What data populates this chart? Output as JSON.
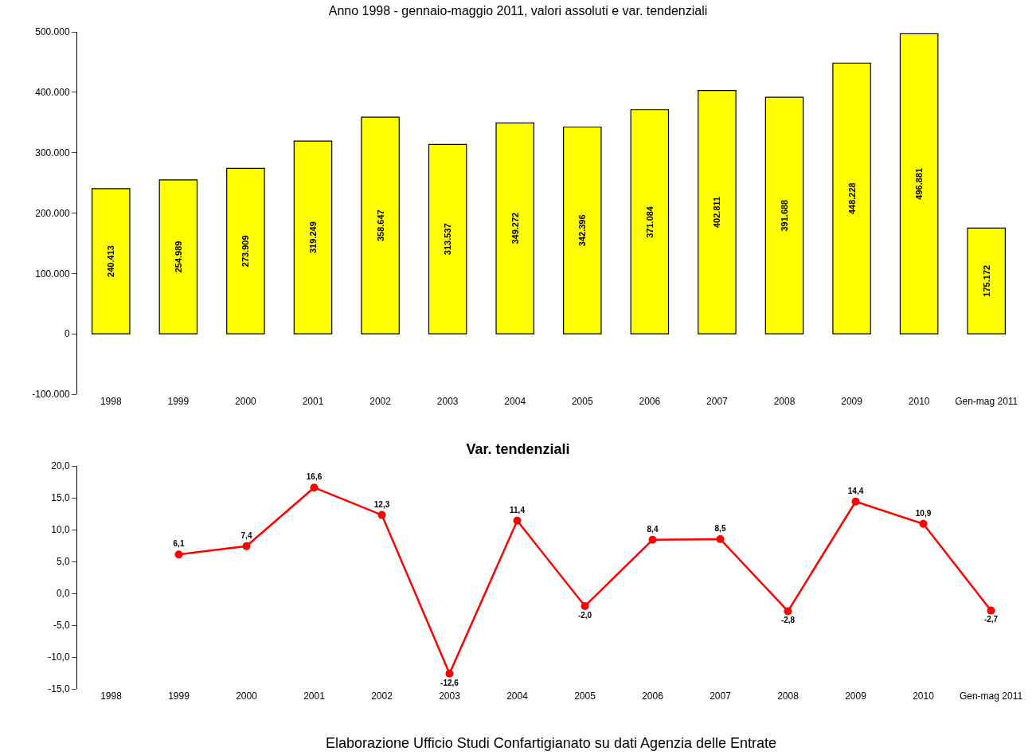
{
  "chart_data": [
    {
      "type": "bar",
      "title": "Anno 1998 - gennaio-maggio 2011, valori assoluti e var. tendenziali",
      "categories": [
        "1998",
        "1999",
        "2000",
        "2001",
        "2002",
        "2003",
        "2004",
        "2005",
        "2006",
        "2007",
        "2008",
        "2009",
        "2010",
        "Gen-mag 2011"
      ],
      "series": [
        {
          "color": "#ffff00",
          "values": [
            240413,
            254989,
            273909,
            319249,
            358647,
            313537,
            349272,
            342396,
            371084,
            402811,
            391688,
            448228,
            496881,
            175172
          ],
          "value_labels": [
            "240.413",
            "254.989",
            "273.909",
            "319.249",
            "358.647",
            "313.537",
            "349.272",
            "342.396",
            "371.084",
            "402.811",
            "391.688",
            "448.228",
            "496.881",
            "175.172"
          ]
        }
      ],
      "ylim": [
        -100000,
        500000
      ],
      "yticks": [
        {
          "value": -100000,
          "label": "-100.000"
        },
        {
          "value": 0,
          "label": "0"
        },
        {
          "value": 100000,
          "label": "100.000"
        },
        {
          "value": 200000,
          "label": "200.000"
        },
        {
          "value": 300000,
          "label": "300.000"
        },
        {
          "value": 400000,
          "label": "400.000"
        },
        {
          "value": 500000,
          "label": "500.000"
        }
      ],
      "grid": false,
      "legend": false
    },
    {
      "type": "line",
      "title": "Var. tendenziali",
      "categories": [
        "1998",
        "1999",
        "2000",
        "2001",
        "2002",
        "2003",
        "2004",
        "2005",
        "2006",
        "2007",
        "2008",
        "2009",
        "2010",
        "Gen-mag 2011"
      ],
      "series": [
        {
          "color": "#ff0000",
          "values": [
            null,
            6.1,
            7.4,
            16.6,
            12.3,
            -12.6,
            11.4,
            -2.0,
            8.4,
            8.5,
            -2.8,
            14.4,
            10.9,
            -2.7
          ],
          "value_labels": [
            null,
            "6,1",
            "7,4",
            "16,6",
            "12,3",
            "-12,6",
            "11,4",
            "-2,0",
            "8,4",
            "8,5",
            "-2,8",
            "14,4",
            "10,9",
            "-2,7"
          ]
        }
      ],
      "ylim": [
        -15,
        20
      ],
      "yticks": [
        {
          "value": -15,
          "label": "-15,0"
        },
        {
          "value": -10,
          "label": "-10,0"
        },
        {
          "value": -5,
          "label": "-5,0"
        },
        {
          "value": 0,
          "label": "0,0"
        },
        {
          "value": 5,
          "label": "5,0"
        },
        {
          "value": 10,
          "label": "10,0"
        },
        {
          "value": 15,
          "label": "15,0"
        },
        {
          "value": 20,
          "label": "20,0"
        }
      ],
      "grid": false,
      "legend": false,
      "marker": "circle",
      "line_style": "solid",
      "annotations": [
        "Elaborazione Ufficio Studi Confartigianato su dati Agenzia delle Entrate"
      ]
    }
  ]
}
